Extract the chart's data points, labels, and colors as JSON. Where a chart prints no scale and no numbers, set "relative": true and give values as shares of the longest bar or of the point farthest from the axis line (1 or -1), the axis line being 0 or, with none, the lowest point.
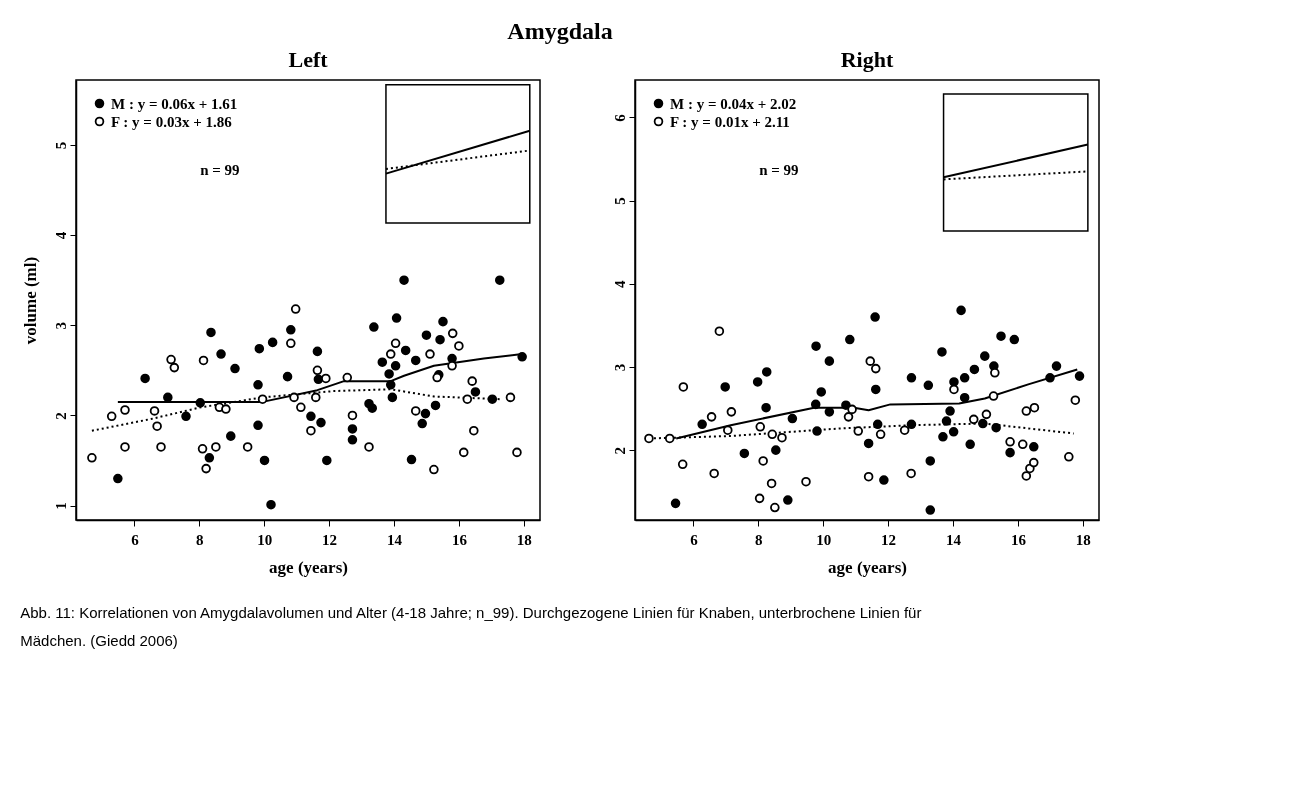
{
  "chart_data": [
    {
      "type": "other",
      "title": "Amygdala",
      "annotations": [
        "Abb. 11: Korrelationen von Amygdalavolumen und Alter (4-18 Jahre; n_99). Durchgezogene Linien für Knaben, unterbrochene Linien für Mädchen. (Giedd 2006)"
      ]
    },
    {
      "type": "scatter",
      "title": "Left",
      "xlabel": "age (years)",
      "ylabel": "volume (ml)",
      "xlim": [
        4.2,
        18.5
      ],
      "ylim": [
        0.84,
        5.72
      ],
      "xticks": [
        6,
        8,
        10,
        12,
        14,
        16,
        18
      ],
      "yticks": [
        1,
        2,
        3,
        4,
        5
      ],
      "legend": "top left",
      "marker": "circle",
      "annotations": [
        "n = 99"
      ],
      "series": [
        {
          "name": "M : y = 0.06x + 1.61",
          "type": "scatter",
          "color": "#000000",
          "x": [
            5.49,
            6.33,
            7.03,
            7.59,
            8.03,
            8.31,
            8.97,
            9.1,
            9.81,
            9.81,
            10.01,
            10.21,
            10.72,
            11.44,
            11.75,
            11.67,
            11.93,
            12.72,
            12.72,
            13.23,
            13.33,
            13.64,
            14.05,
            13.85,
            13.9,
            13.95,
            14.67,
            14.54,
            14.97,
            14.87,
            15.28,
            15.38,
            16.51,
            17.03,
            17.95,
            15.79,
            8.36,
            8.67,
            9.85,
            10.26,
            14.31,
            17.26,
            10.82,
            11.64,
            13.38,
            14.08,
            15.51,
            15.0,
            15.42,
            14.36
          ],
          "values": [
            1.3,
            2.41,
            2.2,
            1.99,
            2.14,
            1.53,
            1.77,
            2.52,
            2.34,
            1.89,
            1.5,
            1.01,
            2.43,
            1.99,
            1.92,
            2.4,
            1.5,
            1.85,
            1.73,
            2.13,
            2.08,
            2.59,
            2.55,
            2.46,
            2.34,
            2.2,
            2.61,
            1.51,
            2.02,
            1.91,
            2.11,
            2.45,
            2.26,
            2.18,
            2.65,
            2.63,
            2.92,
            2.68,
            2.74,
            2.81,
            3.5,
            3.5,
            2.95,
            2.71,
            2.98,
            3.08,
            3.04,
            2.89,
            2.84,
            2.72
          ]
        },
        {
          "name": "F : y = 0.03x + 1.86",
          "type": "scatter",
          "color": "#000000",
          "x": [
            4.69,
            5.3,
            5.71,
            5.71,
            6.62,
            6.7,
            6.82,
            8.1,
            8.51,
            8.21,
            8.62,
            8.82,
            9.49,
            9.95,
            10.92,
            11.13,
            11.44,
            11.59,
            11.64,
            11.9,
            12.56,
            12.72,
            13.23,
            14.67,
            15.23,
            15.79,
            15.33,
            16.26,
            16.41,
            16.46,
            16.15,
            17.59,
            17.79,
            7.13,
            7.23,
            8.13,
            10.97,
            10.82,
            15.81,
            16.0,
            14.05,
            13.9,
            15.11
          ],
          "values": [
            1.53,
            1.99,
            2.06,
            1.65,
            2.05,
            1.88,
            1.65,
            1.63,
            1.65,
            1.41,
            2.09,
            2.07,
            1.65,
            2.18,
            2.2,
            2.09,
            1.83,
            2.2,
            2.5,
            2.41,
            2.42,
            2.0,
            1.65,
            2.05,
            1.4,
            2.55,
            2.42,
            2.18,
            2.38,
            1.83,
            1.59,
            2.2,
            1.59,
            2.62,
            2.53,
            2.61,
            3.18,
            2.8,
            2.91,
            2.77,
            2.8,
            2.68,
            2.68
          ]
        },
        {
          "type": "line",
          "color": "#000000",
          "line_style": "solid",
          "marker": "none",
          "x": [
            5.49,
            9.95,
            11.64,
            12.46,
            13.9,
            14.31,
            15.23,
            16.77,
            17.95
          ],
          "values": [
            2.15,
            2.15,
            2.28,
            2.38,
            2.38,
            2.44,
            2.55,
            2.63,
            2.68
          ]
        },
        {
          "type": "line",
          "color": "#000000",
          "line_style": "dotted",
          "marker": "none",
          "x": [
            4.69,
            6.51,
            8.05,
            9.95,
            12.15,
            13.9,
            15.23,
            17.28
          ],
          "values": [
            1.83,
            1.96,
            2.09,
            2.2,
            2.27,
            2.29,
            2.21,
            2.18
          ]
        }
      ]
    },
    {
      "type": "line",
      "relative": true,
      "categories": [
        null,
        null
      ],
      "series": [
        {
          "color": "#000000",
          "line_style": "solid",
          "values": [
            0,
            1
          ]
        },
        {
          "color": "#000000",
          "line_style": "dotted",
          "values": [
            0.11,
            0.54
          ]
        }
      ]
    },
    {
      "type": "scatter",
      "title": "Right",
      "xlabel": "age (years)",
      "xlim": [
        4.2,
        18.5
      ],
      "ylim": [
        1.16,
        6.45
      ],
      "xticks": [
        6,
        8,
        10,
        12,
        14,
        16,
        18
      ],
      "yticks": [
        2,
        3,
        4,
        5,
        6
      ],
      "legend": "top left",
      "marker": "circle",
      "annotations": [
        "n = 99"
      ],
      "series": [
        {
          "name": "M : y = 0.04x + 2.02",
          "type": "scatter",
          "color": "#000000",
          "x": [
            5.45,
            6.27,
            6.98,
            7.57,
            7.98,
            8.26,
            8.24,
            8.54,
            8.91,
            9.05,
            9.81,
            9.77,
            9.94,
            10.19,
            10.19,
            10.7,
            11.4,
            11.62,
            11.68,
            11.87,
            12.72,
            12.72,
            13.24,
            13.3,
            13.3,
            13.69,
            13.91,
            13.8,
            14.02,
            14.03,
            14.36,
            14.36,
            14.53,
            14.66,
            14.92,
            14.98,
            15.26,
            15.33,
            15.76,
            16.49,
            16.99,
            17.19,
            17.9,
            11.6,
            10.82,
            9.78,
            14.25,
            15.48,
            15.89,
            13.66
          ],
          "values": [
            1.36,
            2.31,
            2.76,
            1.96,
            2.82,
            2.94,
            2.51,
            2.0,
            1.4,
            2.38,
            2.23,
            2.55,
            2.7,
            3.07,
            2.46,
            2.54,
            2.08,
            2.73,
            2.31,
            1.64,
            2.87,
            2.31,
            2.78,
            1.87,
            1.28,
            2.16,
            2.47,
            2.35,
            2.22,
            2.82,
            2.87,
            2.63,
            2.07,
            2.97,
            2.32,
            3.13,
            3.01,
            2.27,
            1.97,
            2.04,
            2.87,
            3.01,
            2.89,
            3.6,
            3.33,
            3.25,
            3.68,
            3.37,
            3.33,
            3.18
          ]
        },
        {
          "name": "F : y = 0.01x + 2.11",
          "type": "scatter",
          "color": "#000000",
          "x": [
            4.63,
            5.27,
            5.69,
            5.67,
            6.56,
            6.64,
            7.17,
            7.06,
            8.06,
            8.15,
            8.04,
            8.41,
            8.51,
            8.43,
            8.73,
            9.47,
            10.78,
            10.89,
            11.08,
            11.4,
            11.45,
            11.62,
            11.77,
            12.51,
            12.71,
            14.03,
            14.64,
            15.03,
            15.25,
            15.29,
            15.76,
            16.15,
            16.26,
            16.51,
            16.26,
            16.37,
            16.49,
            17.57,
            17.77,
            6.8
          ],
          "values": [
            2.14,
            2.14,
            2.76,
            1.83,
            2.4,
            1.72,
            2.46,
            2.24,
            2.28,
            1.87,
            1.42,
            1.6,
            1.31,
            2.19,
            2.15,
            1.62,
            2.4,
            2.49,
            2.23,
            1.68,
            3.07,
            2.98,
            2.19,
            2.24,
            1.72,
            2.73,
            2.37,
            2.43,
            2.65,
            2.93,
            2.1,
            2.07,
            2.47,
            2.51,
            1.69,
            1.78,
            1.85,
            1.92,
            2.6,
            3.43
          ]
        },
        {
          "type": "line",
          "color": "#000000",
          "line_style": "solid",
          "marker": "none",
          "x": [
            5.47,
            7.15,
            9.72,
            10.95,
            11.4,
            12.07,
            14.19,
            14.98,
            16.32,
            17.83
          ],
          "values": [
            2.14,
            2.3,
            2.51,
            2.51,
            2.48,
            2.55,
            2.56,
            2.62,
            2.79,
            2.97
          ]
        },
        {
          "type": "line",
          "color": "#000000",
          "line_style": "dotted",
          "marker": "none",
          "x": [
            4.63,
            7.15,
            10.5,
            12.74,
            14.98,
            17.72
          ],
          "values": [
            2.14,
            2.17,
            2.26,
            2.3,
            2.32,
            2.2
          ]
        }
      ]
    },
    {
      "type": "line",
      "relative": true,
      "categories": [
        null,
        null
      ],
      "series": [
        {
          "color": "#000000",
          "line_style": "solid",
          "values": [
            0.06,
            1
          ]
        },
        {
          "color": "#000000",
          "line_style": "dotted",
          "values": [
            0,
            0.23
          ]
        }
      ]
    }
  ]
}
